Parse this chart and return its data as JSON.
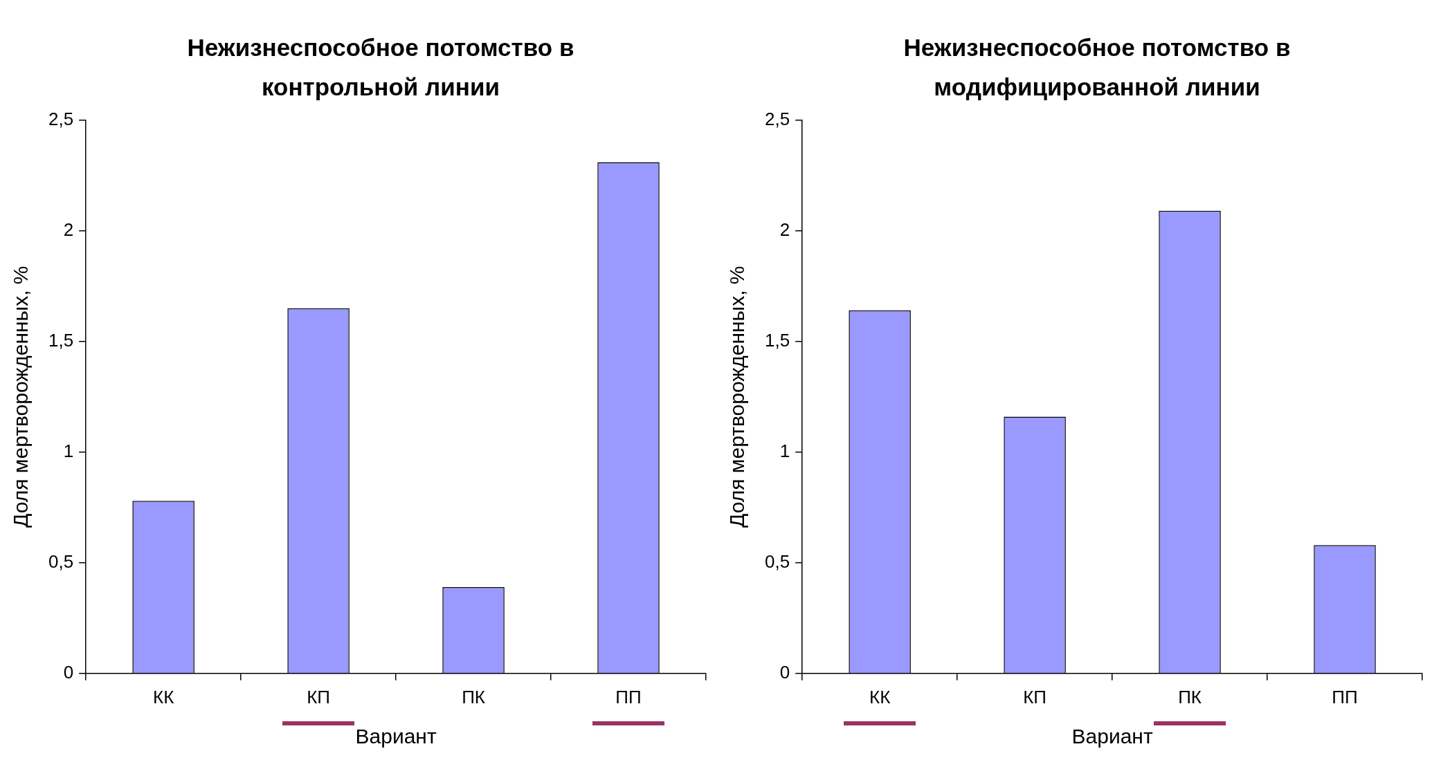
{
  "chart_data": [
    {
      "type": "bar",
      "title": "Нежизнеспособное потомство в контрольной линии",
      "xlabel": "Вариант",
      "ylabel": "Доля мертворожденных, %",
      "categories": [
        "КК",
        "КП",
        "ПК",
        "ПП"
      ],
      "values": [
        0.78,
        1.65,
        0.39,
        2.31
      ],
      "color": "#9999ff",
      "ylim": [
        0,
        2.5
      ],
      "yticks": [
        0,
        {
          "value": 0.5,
          "label": "0,5"
        },
        1,
        {
          "value": 1.5,
          "label": "1,5"
        },
        2,
        {
          "value": 2.5,
          "label": "2,5"
        }
      ],
      "grid": false,
      "legend": false
    },
    {
      "type": "bar",
      "title": "Нежизнеспособное потомство в модифицированной линии",
      "xlabel": "Вариант",
      "ylabel": "Доля мертворожденных, %",
      "categories": [
        "КК",
        "КП",
        "ПК",
        "ПП"
      ],
      "values": [
        1.64,
        1.16,
        2.09,
        0.58
      ],
      "color": "#9999ff",
      "ylim": [
        0,
        2.5
      ],
      "yticks": [
        0,
        {
          "value": 0.5,
          "label": "0,5"
        },
        1,
        {
          "value": 1.5,
          "label": "1,5"
        },
        2,
        {
          "value": 2.5,
          "label": "2,5"
        }
      ],
      "grid": false,
      "legend": false
    }
  ]
}
